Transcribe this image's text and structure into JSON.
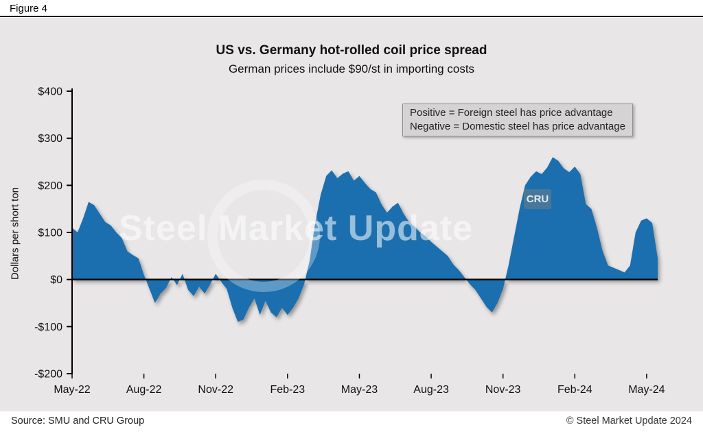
{
  "figure_label": "Figure 4",
  "chart_data": {
    "type": "area",
    "title": "US vs. Germany hot-rolled coil price spread",
    "subtitle": "German prices include $90/st in importing costs",
    "ylabel": "Dollars per short ton",
    "ylim": [
      -200,
      400
    ],
    "ytick_step": 100,
    "ytick_labels": [
      "$400",
      "$300",
      "$200",
      "$100",
      "$0",
      "-$100",
      "-$200"
    ],
    "x_tick_labels": [
      "May-22",
      "Aug-22",
      "Nov-22",
      "Feb-23",
      "May-23",
      "Aug-23",
      "Nov-23",
      "Feb-24",
      "May-24"
    ],
    "x_tick_positions": [
      0,
      13,
      26,
      39,
      52,
      65,
      78,
      91,
      104
    ],
    "x_unit": "weekly",
    "values": [
      110,
      100,
      130,
      165,
      158,
      140,
      122,
      115,
      100,
      88,
      60,
      52,
      45,
      10,
      -20,
      -50,
      -30,
      -18,
      5,
      -12,
      12,
      -22,
      -35,
      -15,
      -30,
      -10,
      12,
      -5,
      -20,
      -60,
      -90,
      -85,
      -60,
      -40,
      -75,
      -45,
      -70,
      -80,
      -60,
      -75,
      -60,
      -40,
      -10,
      40,
      120,
      180,
      220,
      232,
      215,
      225,
      230,
      210,
      220,
      205,
      192,
      185,
      160,
      142,
      155,
      163,
      140,
      122,
      112,
      100,
      92,
      80,
      70,
      60,
      50,
      32,
      20,
      5,
      -10,
      -22,
      -40,
      -58,
      -70,
      -50,
      -20,
      30,
      90,
      150,
      200,
      218,
      230,
      224,
      238,
      260,
      252,
      236,
      228,
      240,
      224,
      160,
      150,
      110,
      62,
      30,
      25,
      20,
      15,
      30,
      100,
      125,
      130,
      120,
      45
    ],
    "area_color": "#1b6fae",
    "zero_line": true,
    "grid": false,
    "legend": "none",
    "annotation": {
      "line1": "Positive = Foreign steel has price advantage",
      "line2": "Negative = Domestic steel has price advantage"
    }
  },
  "watermark": {
    "text": "Steel Market Update",
    "badge": "CRU"
  },
  "footer": {
    "source": "Source: SMU and CRU Group",
    "copyright": "© Steel Market Update 2024"
  }
}
